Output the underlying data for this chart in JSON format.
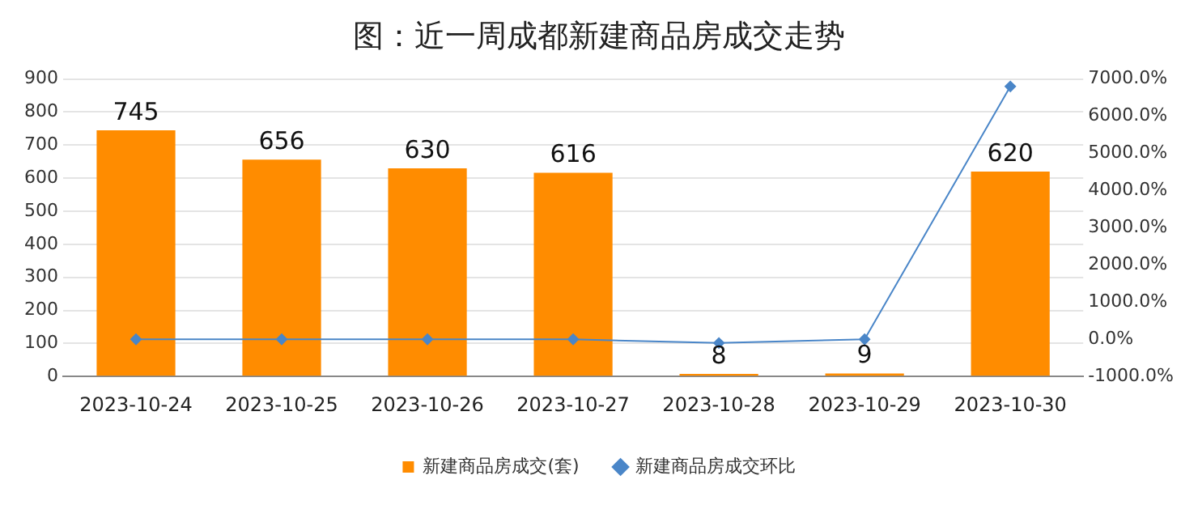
{
  "chart_data": {
    "type": "bar",
    "title": "图：近一周成都新建商品房成交走势",
    "categories": [
      "2023-10-24",
      "2023-10-25",
      "2023-10-26",
      "2023-10-27",
      "2023-10-28",
      "2023-10-29",
      "2023-10-30"
    ],
    "series": [
      {
        "name": "新建商品房成交(套)",
        "color": "#ff8c00",
        "values": [
          745,
          656,
          630,
          616,
          8,
          9,
          620
        ],
        "value_labels": [
          "745",
          "656",
          "630",
          "616",
          "8",
          "9",
          "620"
        ]
      },
      {
        "name": "新建商品房成交环比",
        "type": "line",
        "axis": "y2",
        "color": "#4a86c8",
        "values": [
          0,
          0,
          0,
          0,
          -100,
          0,
          6800
        ]
      }
    ],
    "ylim": [
      0,
      900
    ],
    "yticks": [
      0,
      100,
      200,
      300,
      400,
      500,
      600,
      700,
      800,
      900
    ],
    "y2lim": [
      -1000,
      7000
    ],
    "y2ticks": [
      {
        "value": -1000,
        "label": "-1000.0%"
      },
      {
        "value": 0,
        "label": "0.0%"
      },
      {
        "value": 1000,
        "label": "1000.0%"
      },
      {
        "value": 2000,
        "label": "2000.0%"
      },
      {
        "value": 3000,
        "label": "3000.0%"
      },
      {
        "value": 4000,
        "label": "4000.0%"
      },
      {
        "value": 5000,
        "label": "5000.0%"
      },
      {
        "value": 6000,
        "label": "6000.0%"
      },
      {
        "value": 7000,
        "label": "7000.0%"
      }
    ],
    "grid": "y",
    "legend": "bottom",
    "marker": "diamond"
  }
}
